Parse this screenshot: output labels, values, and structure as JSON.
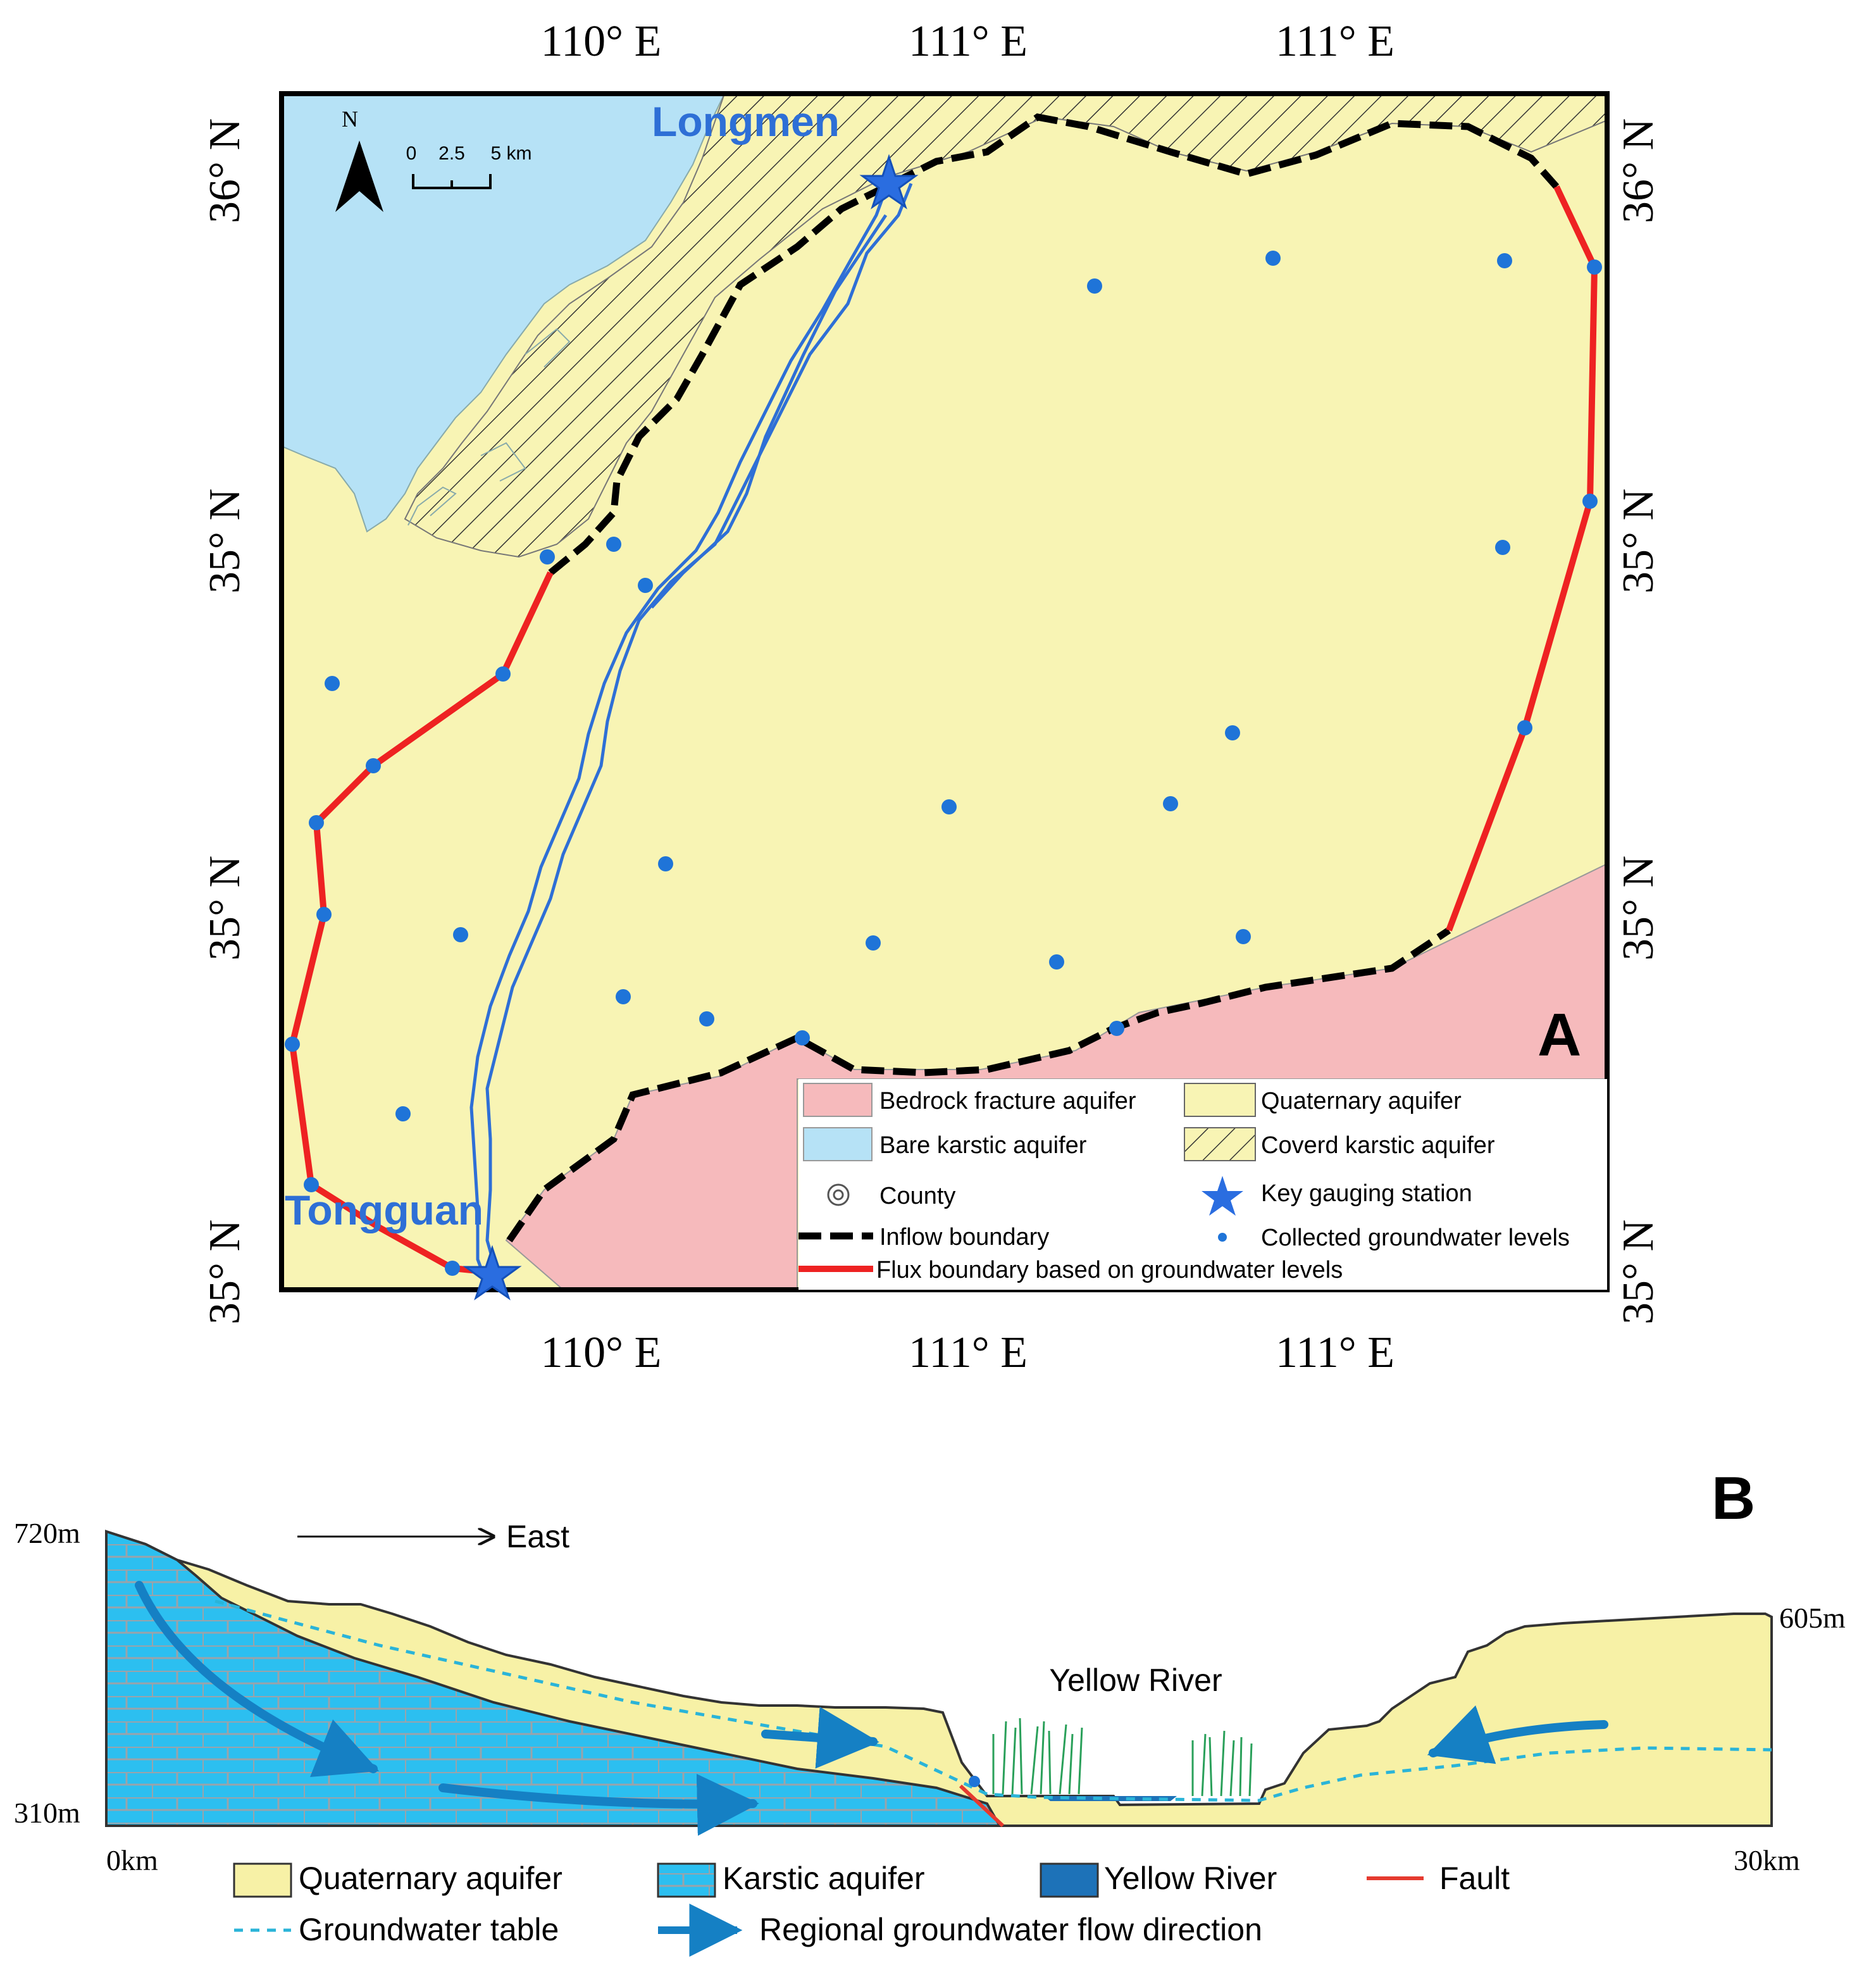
{
  "panel_a": {
    "label": "A",
    "top_ticks": [
      "110° E",
      "111° E",
      "111° E"
    ],
    "bottom_ticks": [
      "110° E",
      "111° E",
      "111° E"
    ],
    "left_ticks": [
      "36° N",
      "35° N",
      "35° N",
      "35° N"
    ],
    "right_ticks": [
      "36° N",
      "35° N",
      "35° N",
      "35° N"
    ],
    "north_label": "N",
    "scale_labels": [
      "0",
      "2.5",
      "5 km"
    ],
    "stations": {
      "longmen": "Longmen",
      "tongguan": "Tongguan"
    },
    "legend": {
      "bedrock": "Bedrock fracture aquifer",
      "quaternary": "Quaternary aquifer",
      "bare_karst": "Bare karstic aquifer",
      "covered_karst": "Coverd karstic aquifer",
      "county": "County",
      "gauging": "Key gauging station",
      "inflow": "Inflow boundary",
      "collected": "Collected groundwater levels",
      "flux": "Flux boundary based on groundwater levels"
    },
    "colors": {
      "quaternary": "#f8f4b4",
      "bare_karst": "#b6e2f6",
      "bedrock": "#f6babc",
      "flux": "#ee2222",
      "inflow": "#000000",
      "wells": "#1f74d8",
      "river": "#2e6fd6"
    }
  },
  "panel_b": {
    "label": "B",
    "elev_top": "720m",
    "elev_bottom": "310m",
    "elev_right": "605m",
    "dist_left": "0km",
    "dist_right": "30km",
    "east": "East",
    "river": "Yellow River",
    "legend": {
      "quaternary": "Quaternary aquifer",
      "karstic": "Karstic aquifer",
      "yellow_river": "Yellow River",
      "fault": "Fault",
      "gw_table": "Groundwater table",
      "flow": "Regional groundwater flow direction"
    },
    "colors": {
      "quaternary": "#f7f1a6",
      "karst": "#2cbff0",
      "river": "#1d72b8",
      "fault": "#e53a2f",
      "flow": "#1580c4",
      "gw_table": "#2ab4d8"
    }
  }
}
